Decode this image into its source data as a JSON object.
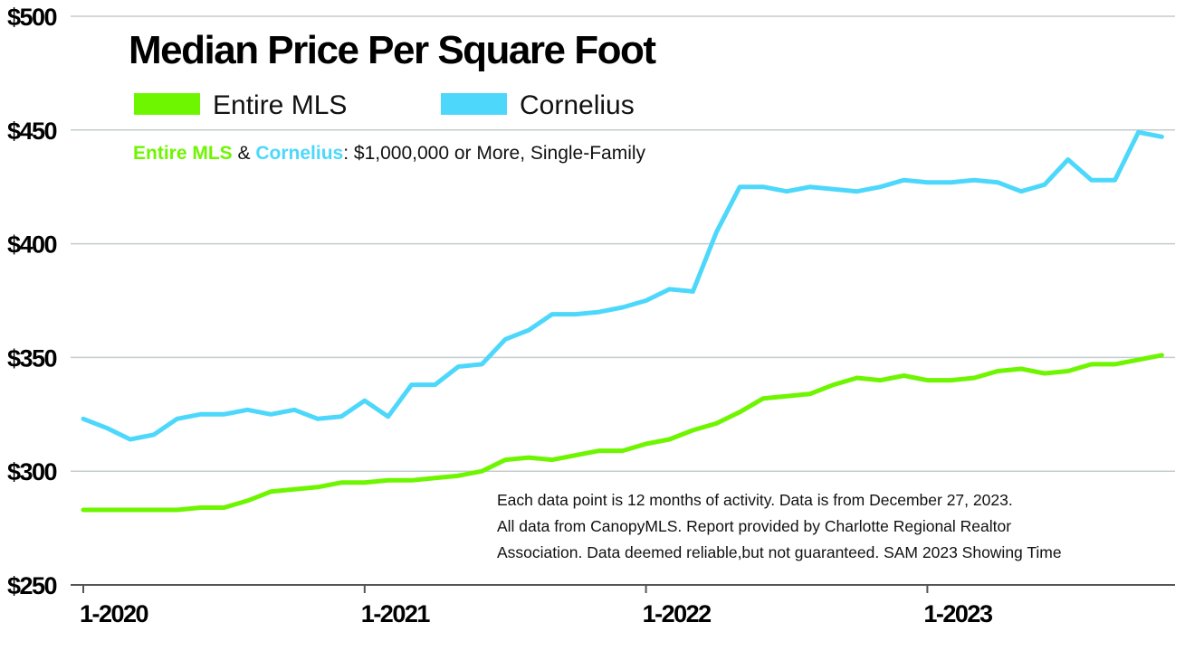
{
  "chart_data": {
    "type": "line",
    "title": "Median Price Per Square Foot",
    "subtitle": {
      "part1": "Entire MLS",
      "part2": " & ",
      "part3": "Cornelius",
      "part4": ": $1,000,000 or More, Single-Family"
    },
    "note": [
      "Each data point is 12 months of activity. Data is from December 27, 2023.",
      "All data from CanopyMLS. Report provided by Charlotte Regional Realtor",
      "Association. Data deemed reliable,but not guaranteed. SAM 2023 Showing Time"
    ],
    "ylim": [
      250,
      500
    ],
    "yticks": [
      250,
      300,
      350,
      400,
      450,
      500
    ],
    "ytick_labels": [
      "$250",
      "$300",
      "$350",
      "$400",
      "$450",
      "$500"
    ],
    "xticks": [
      {
        "label": "1-2020",
        "index": 0
      },
      {
        "label": "1-2021",
        "index": 12
      },
      {
        "label": "1-2022",
        "index": 24
      },
      {
        "label": "1-2023",
        "index": 36
      }
    ],
    "x_start": "2020-01",
    "x_end": "2023-11",
    "grid": true,
    "legend_position": "top-left",
    "series": [
      {
        "name": "Entire MLS",
        "color": "#6ef500",
        "values": [
          283,
          283,
          283,
          283,
          283,
          284,
          284,
          287,
          291,
          292,
          293,
          295,
          295,
          296,
          296,
          297,
          298,
          300,
          305,
          306,
          305,
          307,
          309,
          309,
          312,
          314,
          318,
          321,
          326,
          332,
          333,
          334,
          338,
          341,
          340,
          342,
          340,
          340,
          341,
          344,
          345,
          343,
          344,
          347,
          347,
          349,
          351
        ]
      },
      {
        "name": "Cornelius",
        "color": "#4dd8fb",
        "values": [
          323,
          319,
          314,
          316,
          323,
          325,
          325,
          327,
          325,
          327,
          323,
          324,
          331,
          324,
          338,
          338,
          346,
          347,
          358,
          362,
          369,
          369,
          370,
          372,
          375,
          380,
          379,
          405,
          425,
          425,
          423,
          425,
          424,
          423,
          425,
          428,
          427,
          427,
          428,
          427,
          423,
          426,
          437,
          428,
          428,
          449,
          447
        ]
      }
    ]
  }
}
